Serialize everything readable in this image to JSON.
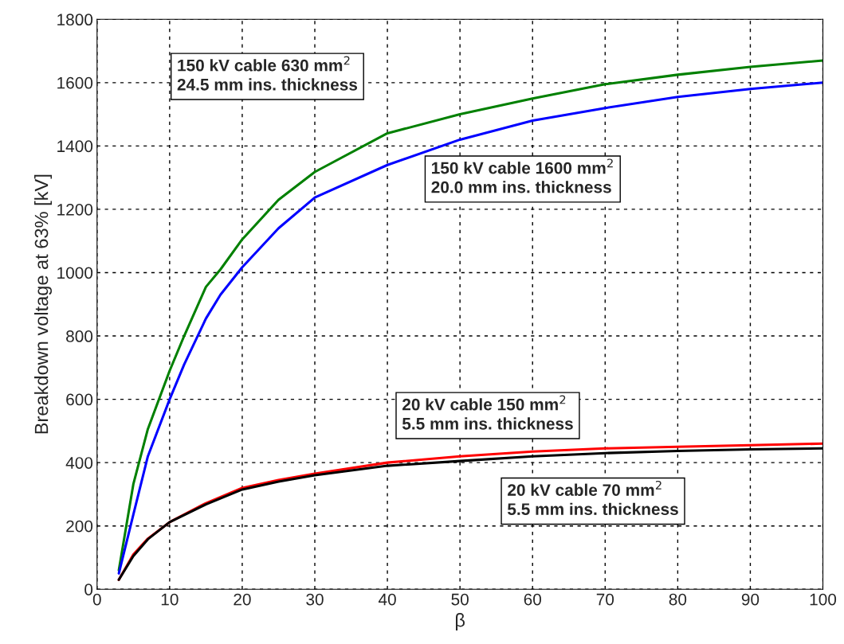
{
  "chart_data": {
    "type": "line",
    "xlabel": "β",
    "ylabel": "Breakdown voltage at 63% [kV]",
    "xlim": [
      0,
      100
    ],
    "ylim": [
      0,
      1800
    ],
    "xticks": [
      0,
      10,
      20,
      30,
      40,
      50,
      60,
      70,
      80,
      90,
      100
    ],
    "yticks": [
      0,
      200,
      400,
      600,
      800,
      1000,
      1200,
      1400,
      1600,
      1800
    ],
    "grid": true,
    "line_style": "solid",
    "series": [
      {
        "color": "#008000",
        "x": [
          3,
          5,
          7,
          10,
          12,
          15,
          17,
          20,
          25,
          30,
          40,
          50,
          60,
          70,
          80,
          90,
          100
        ],
        "values": [
          60,
          332,
          506,
          690,
          800,
          955,
          1010,
          1105,
          1230,
          1318,
          1440,
          1500,
          1550,
          1595,
          1625,
          1650,
          1670
        ]
      },
      {
        "color": "#0000ff",
        "x": [
          3,
          5,
          7,
          10,
          12,
          15,
          17,
          20,
          25,
          30,
          40,
          50,
          60,
          70,
          80,
          90,
          100
        ],
        "values": [
          50,
          236,
          420,
          600,
          710,
          855,
          930,
          1017,
          1140,
          1237,
          1340,
          1420,
          1480,
          1520,
          1555,
          1580,
          1600
        ]
      },
      {
        "color": "#ff0000",
        "x": [
          3,
          5,
          7,
          10,
          15,
          20,
          25,
          30,
          40,
          50,
          60,
          70,
          80,
          90,
          100
        ],
        "values": [
          30,
          110,
          160,
          212,
          272,
          320,
          345,
          365,
          400,
          420,
          435,
          445,
          450,
          455,
          460
        ]
      },
      {
        "color": "#000000",
        "x": [
          3,
          5,
          7,
          10,
          15,
          20,
          25,
          30,
          40,
          50,
          60,
          70,
          80,
          90,
          100
        ],
        "values": [
          30,
          105,
          158,
          212,
          268,
          315,
          340,
          360,
          390,
          405,
          420,
          430,
          437,
          442,
          445
        ]
      }
    ],
    "annotations": [
      "150 kV cable 630 mm$^{2}$\n24.5 mm ins. thickness",
      "150 kV cable 1600 mm$^{2}$\n20.0 mm ins. thickness",
      "20 kV cable 150 mm$^{2}$\n5.5 mm ins. thickness",
      "20 kV cable 70 mm$^{2}$\n5.5 mm ins. thickness"
    ]
  }
}
